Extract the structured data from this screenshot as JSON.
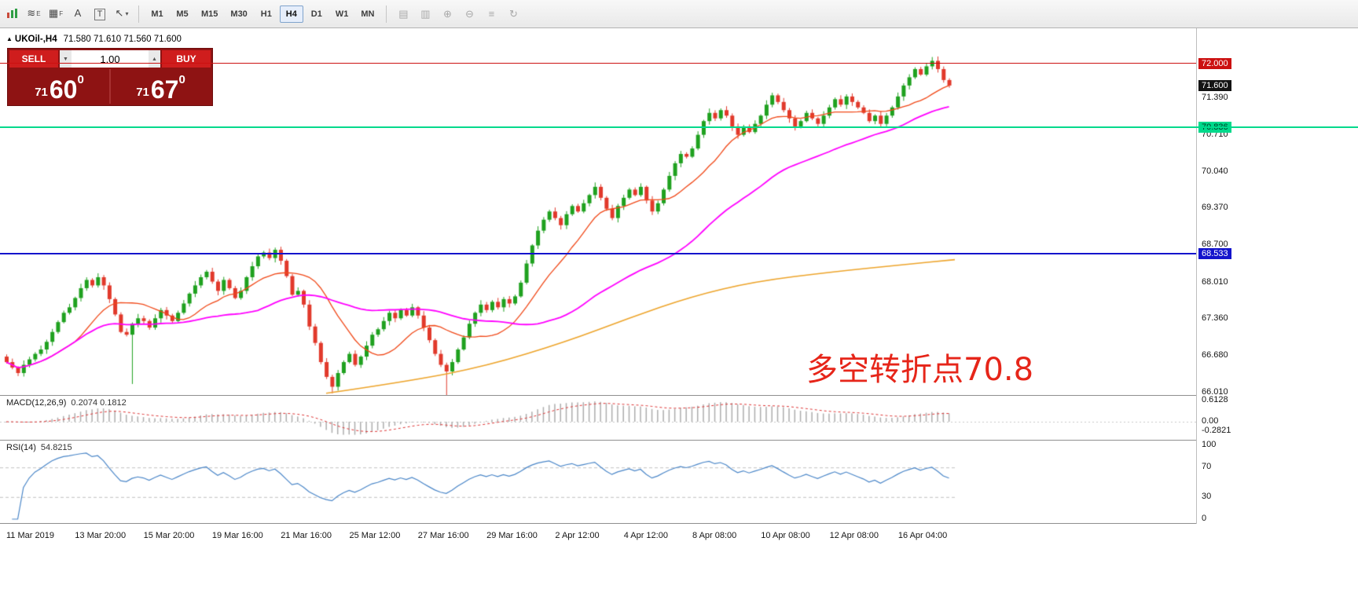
{
  "toolbar": {
    "draw_tools": [
      {
        "name": "trendline-tool-icon",
        "glyph": "≋",
        "sub": "E",
        "boxed": false,
        "caret": false
      },
      {
        "name": "grid-tool-icon",
        "glyph": "▦",
        "sub": "F",
        "boxed": false,
        "caret": false
      },
      {
        "name": "text-tool-icon",
        "glyph": "A",
        "sub": "",
        "boxed": false,
        "caret": false
      },
      {
        "name": "textbox-tool-icon",
        "glyph": "T",
        "sub": "",
        "boxed": true,
        "caret": false
      },
      {
        "name": "arrows-tool-icon",
        "glyph": "↖",
        "sub": "",
        "boxed": false,
        "caret": true
      }
    ],
    "timeframes": [
      "M1",
      "M5",
      "M15",
      "M30",
      "H1",
      "H4",
      "D1",
      "W1",
      "MN"
    ],
    "active_timeframe": "H4",
    "chart_tools": [
      {
        "name": "tile-windows-icon",
        "glyph": "▤"
      },
      {
        "name": "cascade-windows-icon",
        "glyph": "▥"
      },
      {
        "name": "zoom-in-icon",
        "glyph": "⊕"
      },
      {
        "name": "zoom-out-icon",
        "glyph": "⊖"
      },
      {
        "name": "indicators-icon",
        "glyph": "≡"
      },
      {
        "name": "refresh-icon",
        "glyph": "↻"
      }
    ]
  },
  "chart_header": {
    "marker": "▲",
    "symbol": "UKOil-,H4",
    "ohlc": "71.580 71.610 71.560 71.600"
  },
  "trade_panel": {
    "sell_label": "SELL",
    "buy_label": "BUY",
    "volume": "1.00",
    "volume_down": "▼",
    "volume_up": "▲",
    "sell_price": {
      "prefix": "71",
      "main": "60",
      "sup": "0"
    },
    "buy_price": {
      "prefix": "71",
      "main": "67",
      "sup": "0"
    }
  },
  "annotation": {
    "text": "多空转折点70.8",
    "color": "#e62519"
  },
  "price_axis": {
    "ticks": [
      "71.390",
      "70.710",
      "70.040",
      "69.370",
      "68.700",
      "68.010",
      "67.360",
      "66.680",
      "66.010"
    ],
    "badges": [
      {
        "name": "resistance-price-badge",
        "text": "72.000",
        "price": 72.0,
        "bg": "#cc1111",
        "fg": "#ffffff"
      },
      {
        "name": "current-price-badge",
        "text": "71.600",
        "price": 71.6,
        "bg": "#141414",
        "fg": "#ffffff"
      },
      {
        "name": "pivot-price-badge",
        "text": "70.836",
        "price": 70.836,
        "bg": "#00d98b",
        "fg": "#003a22"
      },
      {
        "name": "support-price-badge",
        "text": "68.533",
        "price": 68.533,
        "bg": "#1414cc",
        "fg": "#ffffff"
      }
    ]
  },
  "macd_panel": {
    "label": "MACD(12,26,9)",
    "values": "0.2074 0.1812",
    "axis": [
      "0.6128",
      "0.00",
      "-0.2821"
    ]
  },
  "rsi_panel": {
    "label": "RSI(14)",
    "value": "54.8215",
    "axis": [
      "100",
      "70",
      "30",
      "0"
    ]
  },
  "time_axis": {
    "labels": [
      "11 Mar 2019",
      "13 Mar 20:00",
      "15 Mar 20:00",
      "19 Mar 16:00",
      "21 Mar 16:00",
      "25 Mar 12:00",
      "27 Mar 16:00",
      "29 Mar 16:00",
      "2 Apr 12:00",
      "4 Apr 12:00",
      "8 Apr 08:00",
      "10 Apr 08:00",
      "12 Apr 08:00",
      "16 Apr 04:00"
    ]
  },
  "chart_data": {
    "type": "candlestick",
    "symbol": "UKOil-",
    "timeframe": "H4",
    "current_ohlc": {
      "open": 71.58,
      "high": 71.61,
      "low": 71.56,
      "close": 71.6
    },
    "y_axis_ticks": [
      71.39,
      70.71,
      70.04,
      69.37,
      68.7,
      68.01,
      67.36,
      66.68,
      66.01
    ],
    "y_range": [
      65.95,
      72.645
    ],
    "closes": [
      66.55,
      66.45,
      66.35,
      66.5,
      66.6,
      66.7,
      66.78,
      66.92,
      67.1,
      67.28,
      67.45,
      67.55,
      67.72,
      67.9,
      68.05,
      67.95,
      68.1,
      67.95,
      67.7,
      67.42,
      67.1,
      67.05,
      67.25,
      67.35,
      67.3,
      67.18,
      67.35,
      67.5,
      67.4,
      67.3,
      67.45,
      67.62,
      67.8,
      67.95,
      68.1,
      68.2,
      68.02,
      67.85,
      68.05,
      67.9,
      67.72,
      67.85,
      68.1,
      68.3,
      68.48,
      68.55,
      68.45,
      68.6,
      68.4,
      68.12,
      67.78,
      67.85,
      67.6,
      67.2,
      66.9,
      66.55,
      66.28,
      66.1,
      66.35,
      66.55,
      66.7,
      66.5,
      66.65,
      66.85,
      67.05,
      67.15,
      67.3,
      67.45,
      67.35,
      67.5,
      67.4,
      67.55,
      67.4,
      67.18,
      66.95,
      66.7,
      66.5,
      66.38,
      66.55,
      66.78,
      67.0,
      67.25,
      67.45,
      67.6,
      67.5,
      67.65,
      67.55,
      67.7,
      67.62,
      67.75,
      68.0,
      68.35,
      68.68,
      68.95,
      69.15,
      69.3,
      69.18,
      69.05,
      69.25,
      69.4,
      69.3,
      69.45,
      69.6,
      69.75,
      69.55,
      69.35,
      69.18,
      69.4,
      69.55,
      69.7,
      69.6,
      69.75,
      69.5,
      69.3,
      69.45,
      69.7,
      69.95,
      70.18,
      70.35,
      70.3,
      70.45,
      70.7,
      70.95,
      71.1,
      71.0,
      71.15,
      71.05,
      70.85,
      70.7,
      70.85,
      70.75,
      70.9,
      71.05,
      71.25,
      71.42,
      71.3,
      71.15,
      71.0,
      70.85,
      70.95,
      71.1,
      71.0,
      70.9,
      71.05,
      71.2,
      71.35,
      71.25,
      71.4,
      71.3,
      71.2,
      71.1,
      70.95,
      71.05,
      70.9,
      71.05,
      71.2,
      71.4,
      71.6,
      71.75,
      71.9,
      71.8,
      71.95,
      72.05,
      71.9,
      71.7,
      71.6
    ],
    "special_lows": {
      "22": 66.15,
      "57": 65.98,
      "77": 65.92
    },
    "special_highs": {
      "162": 72.12
    },
    "hlines": [
      {
        "name": "resistance-line",
        "price": 72.0,
        "color": "#cc1111",
        "thickness": 1,
        "full_width": false
      },
      {
        "name": "pivot-line",
        "price": 70.836,
        "color": "#00d98b",
        "thickness": 2,
        "full_width": true
      },
      {
        "name": "support-line",
        "price": 68.533,
        "color": "#1414cc",
        "thickness": 2,
        "full_width": false
      }
    ],
    "ma_fast": {
      "period": 13,
      "color": "#f04818"
    },
    "ma_mid": {
      "period": 45,
      "color": "#ff00ff"
    },
    "ma_slow": {
      "color": "#eda42b",
      "points_x_price": [
        [
          415,
          65.98
        ],
        [
          520,
          66.2
        ],
        [
          620,
          66.48
        ],
        [
          720,
          66.92
        ],
        [
          800,
          67.35
        ],
        [
          880,
          67.75
        ],
        [
          960,
          68.02
        ],
        [
          1060,
          68.2
        ],
        [
          1150,
          68.33
        ],
        [
          1215,
          68.42
        ]
      ]
    },
    "up_color": "#1fa11f",
    "down_color": "#e1392b",
    "macd": {
      "fast": 12,
      "slow": 26,
      "signal": 9,
      "hist_color": "#adadad",
      "signal_color": "#dd3333"
    },
    "rsi": {
      "period": 14,
      "color": "#4a86c8",
      "levels": [
        70,
        30
      ],
      "level_color": "#c0c0c0"
    }
  }
}
